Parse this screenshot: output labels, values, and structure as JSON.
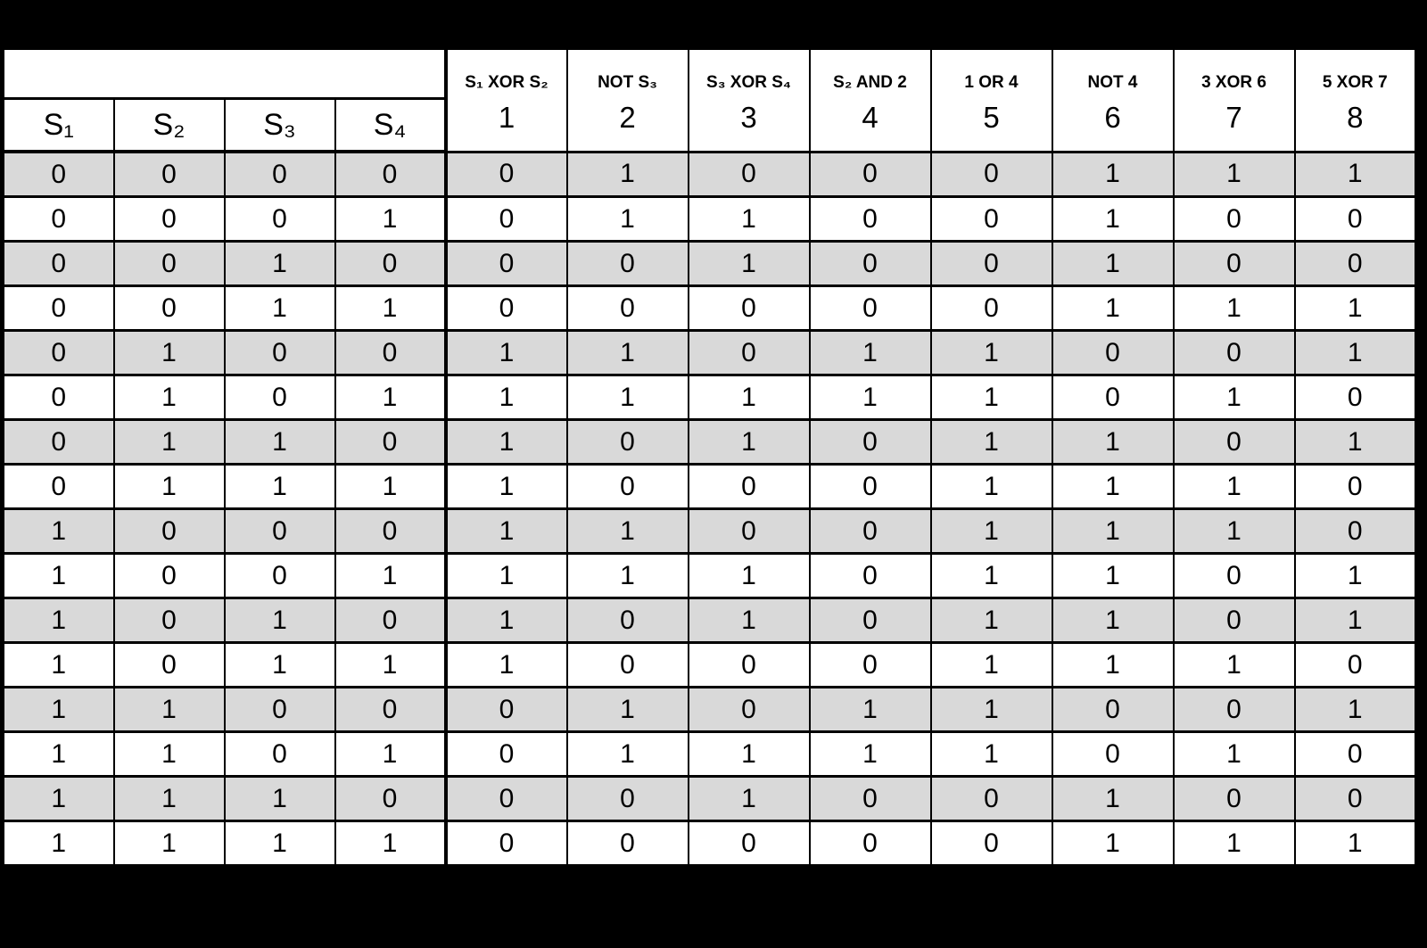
{
  "page": {
    "background_color": "#000000",
    "shaded_row_color": "#d9d9d9",
    "border_color": "#000000"
  },
  "table": {
    "input_columns": [
      "S₁",
      "S₂",
      "S₃",
      "S₄"
    ],
    "output_columns": [
      {
        "formula": "S₁ XOR S₂",
        "number": "1"
      },
      {
        "formula": "NOT S₃",
        "number": "2"
      },
      {
        "formula": "S₃ XOR S₄",
        "number": "3"
      },
      {
        "formula": "S₂ AND 2",
        "number": "4"
      },
      {
        "formula": "1 OR 4",
        "number": "5"
      },
      {
        "formula": "NOT 4",
        "number": "6"
      },
      {
        "formula": "3 XOR 6",
        "number": "7"
      },
      {
        "formula": "5 XOR 7",
        "number": "8"
      }
    ],
    "rows": [
      {
        "inputs": [
          "0",
          "0",
          "0",
          "0"
        ],
        "outputs": [
          "0",
          "1",
          "0",
          "0",
          "0",
          "1",
          "1",
          "1"
        ],
        "shaded": true
      },
      {
        "inputs": [
          "0",
          "0",
          "0",
          "1"
        ],
        "outputs": [
          "0",
          "1",
          "1",
          "0",
          "0",
          "1",
          "0",
          "0"
        ],
        "shaded": false
      },
      {
        "inputs": [
          "0",
          "0",
          "1",
          "0"
        ],
        "outputs": [
          "0",
          "0",
          "1",
          "0",
          "0",
          "1",
          "0",
          "0"
        ],
        "shaded": true
      },
      {
        "inputs": [
          "0",
          "0",
          "1",
          "1"
        ],
        "outputs": [
          "0",
          "0",
          "0",
          "0",
          "0",
          "1",
          "1",
          "1"
        ],
        "shaded": false
      },
      {
        "inputs": [
          "0",
          "1",
          "0",
          "0"
        ],
        "outputs": [
          "1",
          "1",
          "0",
          "1",
          "1",
          "0",
          "0",
          "1"
        ],
        "shaded": true
      },
      {
        "inputs": [
          "0",
          "1",
          "0",
          "1"
        ],
        "outputs": [
          "1",
          "1",
          "1",
          "1",
          "1",
          "0",
          "1",
          "0"
        ],
        "shaded": false
      },
      {
        "inputs": [
          "0",
          "1",
          "1",
          "0"
        ],
        "outputs": [
          "1",
          "0",
          "1",
          "0",
          "1",
          "1",
          "0",
          "1"
        ],
        "shaded": true
      },
      {
        "inputs": [
          "0",
          "1",
          "1",
          "1"
        ],
        "outputs": [
          "1",
          "0",
          "0",
          "0",
          "1",
          "1",
          "1",
          "0"
        ],
        "shaded": false
      },
      {
        "inputs": [
          "1",
          "0",
          "0",
          "0"
        ],
        "outputs": [
          "1",
          "1",
          "0",
          "0",
          "1",
          "1",
          "1",
          "0"
        ],
        "shaded": true
      },
      {
        "inputs": [
          "1",
          "0",
          "0",
          "1"
        ],
        "outputs": [
          "1",
          "1",
          "1",
          "0",
          "1",
          "1",
          "0",
          "1"
        ],
        "shaded": false
      },
      {
        "inputs": [
          "1",
          "0",
          "1",
          "0"
        ],
        "outputs": [
          "1",
          "0",
          "1",
          "0",
          "1",
          "1",
          "0",
          "1"
        ],
        "shaded": true
      },
      {
        "inputs": [
          "1",
          "0",
          "1",
          "1"
        ],
        "outputs": [
          "1",
          "0",
          "0",
          "0",
          "1",
          "1",
          "1",
          "0"
        ],
        "shaded": false
      },
      {
        "inputs": [
          "1",
          "1",
          "0",
          "0"
        ],
        "outputs": [
          "0",
          "1",
          "0",
          "1",
          "1",
          "0",
          "0",
          "1"
        ],
        "shaded": true
      },
      {
        "inputs": [
          "1",
          "1",
          "0",
          "1"
        ],
        "outputs": [
          "0",
          "1",
          "1",
          "1",
          "1",
          "0",
          "1",
          "0"
        ],
        "shaded": false
      },
      {
        "inputs": [
          "1",
          "1",
          "1",
          "0"
        ],
        "outputs": [
          "0",
          "0",
          "1",
          "0",
          "0",
          "1",
          "0",
          "0"
        ],
        "shaded": true
      },
      {
        "inputs": [
          "1",
          "1",
          "1",
          "1"
        ],
        "outputs": [
          "0",
          "0",
          "0",
          "0",
          "0",
          "1",
          "1",
          "1"
        ],
        "shaded": false
      }
    ]
  }
}
